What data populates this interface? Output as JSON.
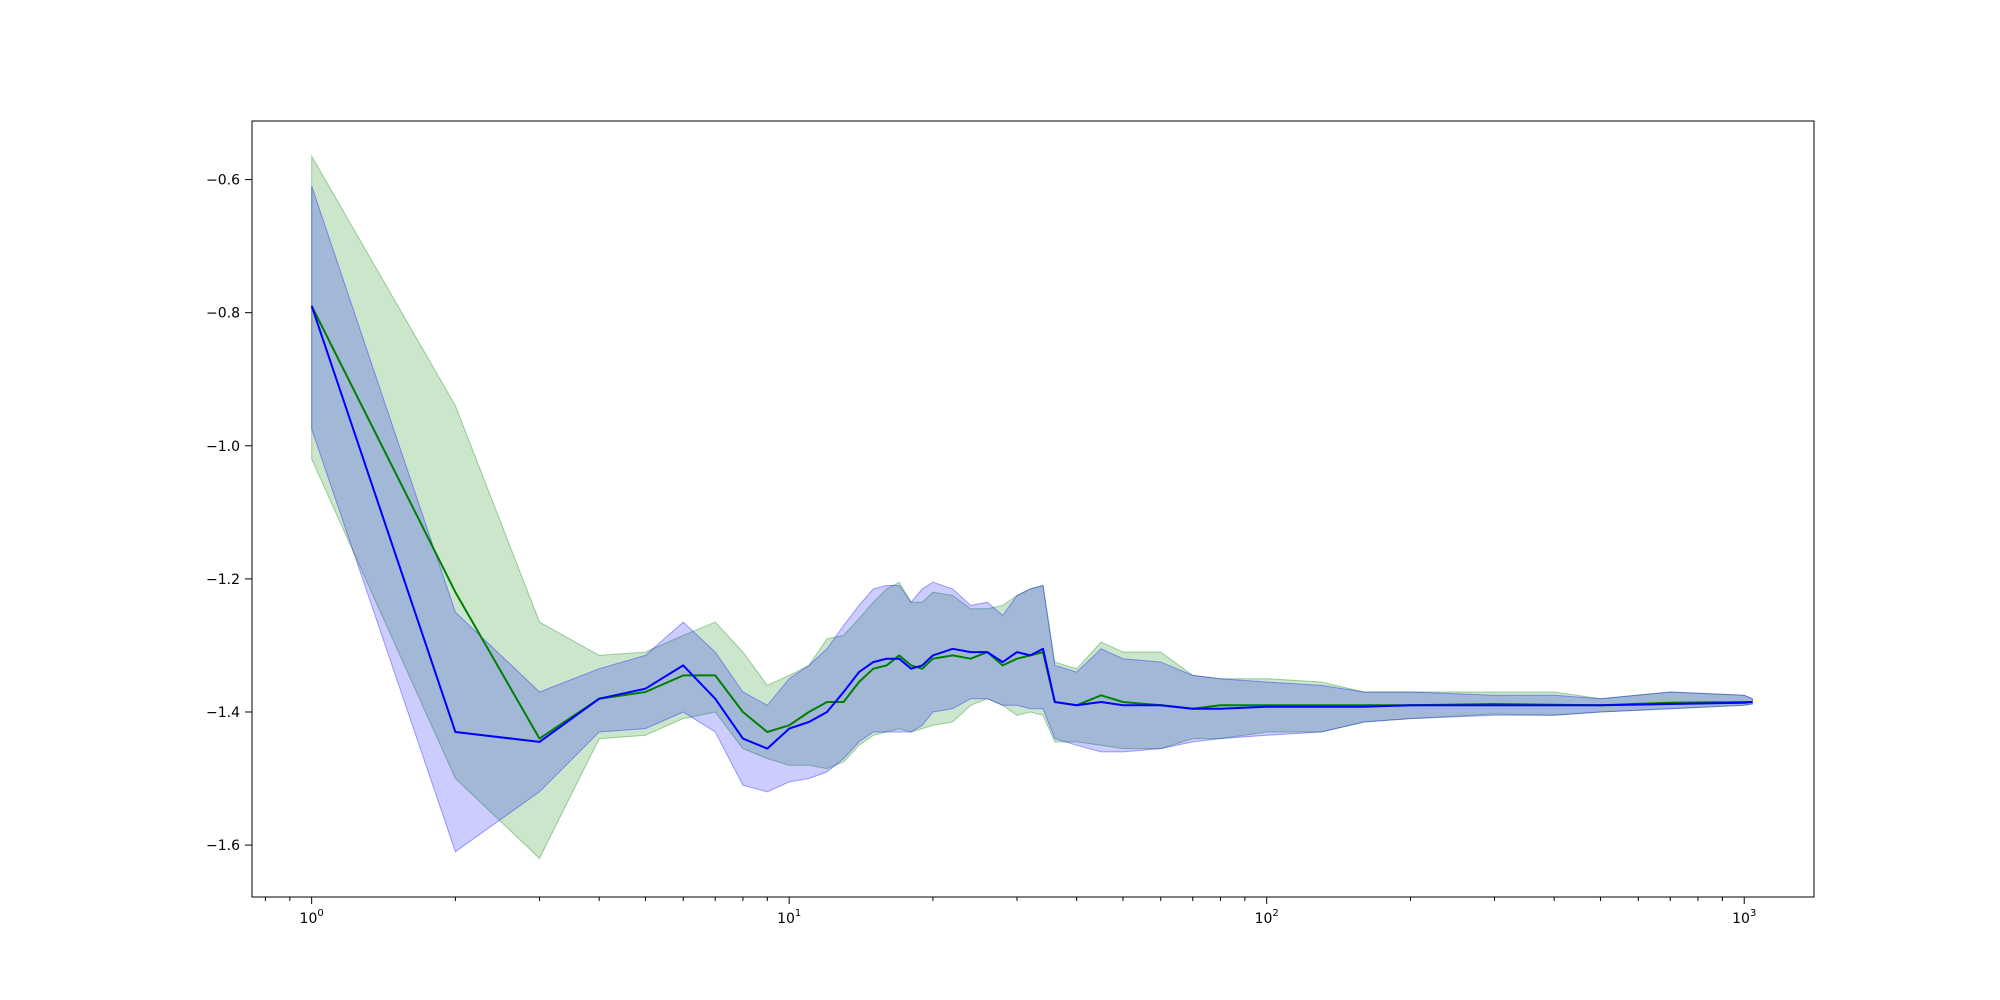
{
  "chart_data": {
    "type": "line",
    "xscale": "log",
    "xlim": [
      0.75,
      1400
    ],
    "ylim": [
      -1.678,
      -0.512
    ],
    "grid": false,
    "x_ticks": [
      {
        "value": 1,
        "base": "10",
        "exp": "0"
      },
      {
        "value": 10,
        "base": "10",
        "exp": "1"
      },
      {
        "value": 100,
        "base": "10",
        "exp": "2"
      },
      {
        "value": 1000,
        "base": "10",
        "exp": "3"
      }
    ],
    "y_ticks": [
      {
        "value": -1.6,
        "label": "−1.6"
      },
      {
        "value": -1.4,
        "label": "−1.4"
      },
      {
        "value": -1.2,
        "label": "−1.2"
      },
      {
        "value": -1.0,
        "label": "−1.0"
      },
      {
        "value": -0.8,
        "label": "−0.8"
      },
      {
        "value": -0.6,
        "label": "−0.6"
      }
    ],
    "series": [
      {
        "color": "#008000",
        "band_color": "#008000",
        "band_opacity": 0.2,
        "x": [
          1,
          2,
          3,
          4,
          5,
          6,
          7,
          8,
          9,
          10,
          11,
          12,
          13,
          14,
          15,
          16,
          17,
          18,
          19,
          20,
          22,
          24,
          26,
          28,
          30,
          32,
          34,
          36,
          40,
          45,
          50,
          60,
          70,
          80,
          100,
          130,
          160,
          200,
          300,
          400,
          500,
          700,
          1000,
          1040
        ],
        "mean": [
          -0.79,
          -1.22,
          -1.44,
          -1.38,
          -1.37,
          -1.345,
          -1.345,
          -1.4,
          -1.43,
          -1.42,
          -1.4,
          -1.385,
          -1.385,
          -1.355,
          -1.335,
          -1.33,
          -1.315,
          -1.33,
          -1.335,
          -1.32,
          -1.315,
          -1.32,
          -1.31,
          -1.33,
          -1.32,
          -1.315,
          -1.31,
          -1.385,
          -1.39,
          -1.375,
          -1.385,
          -1.39,
          -1.395,
          -1.39,
          -1.39,
          -1.39,
          -1.39,
          -1.39,
          -1.388,
          -1.389,
          -1.39,
          -1.386,
          -1.385,
          -1.385
        ],
        "lower": [
          -1.02,
          -1.5,
          -1.62,
          -1.44,
          -1.435,
          -1.41,
          -1.4,
          -1.455,
          -1.47,
          -1.48,
          -1.48,
          -1.485,
          -1.475,
          -1.45,
          -1.435,
          -1.43,
          -1.425,
          -1.43,
          -1.425,
          -1.42,
          -1.415,
          -1.39,
          -1.38,
          -1.39,
          -1.405,
          -1.4,
          -1.405,
          -1.445,
          -1.445,
          -1.45,
          -1.455,
          -1.455,
          -1.44,
          -1.44,
          -1.43,
          -1.43,
          -1.415,
          -1.41,
          -1.403,
          -1.405,
          -1.4,
          -1.395,
          -1.39,
          -1.388
        ],
        "upper": [
          -0.565,
          -0.94,
          -1.265,
          -1.315,
          -1.31,
          -1.285,
          -1.265,
          -1.31,
          -1.36,
          -1.345,
          -1.33,
          -1.29,
          -1.285,
          -1.26,
          -1.235,
          -1.215,
          -1.205,
          -1.235,
          -1.235,
          -1.22,
          -1.225,
          -1.245,
          -1.245,
          -1.24,
          -1.225,
          -1.215,
          -1.21,
          -1.325,
          -1.335,
          -1.295,
          -1.31,
          -1.31,
          -1.345,
          -1.35,
          -1.35,
          -1.355,
          -1.37,
          -1.37,
          -1.37,
          -1.37,
          -1.38,
          -1.37,
          -1.375,
          -1.38
        ]
      },
      {
        "color": "#0000ff",
        "band_color": "#0000ff",
        "band_opacity": 0.2,
        "x": [
          1,
          2,
          3,
          4,
          5,
          6,
          7,
          8,
          9,
          10,
          11,
          12,
          13,
          14,
          15,
          16,
          17,
          18,
          19,
          20,
          22,
          24,
          26,
          28,
          30,
          32,
          34,
          36,
          40,
          45,
          50,
          60,
          70,
          80,
          100,
          130,
          160,
          200,
          300,
          400,
          500,
          700,
          1000,
          1040
        ],
        "mean": [
          -0.79,
          -1.43,
          -1.445,
          -1.38,
          -1.365,
          -1.33,
          -1.38,
          -1.44,
          -1.455,
          -1.425,
          -1.415,
          -1.4,
          -1.37,
          -1.34,
          -1.325,
          -1.32,
          -1.32,
          -1.335,
          -1.33,
          -1.315,
          -1.305,
          -1.31,
          -1.31,
          -1.325,
          -1.31,
          -1.315,
          -1.305,
          -1.385,
          -1.39,
          -1.385,
          -1.39,
          -1.39,
          -1.395,
          -1.395,
          -1.392,
          -1.392,
          -1.392,
          -1.39,
          -1.39,
          -1.39,
          -1.39,
          -1.388,
          -1.386,
          -1.385
        ],
        "lower": [
          -0.975,
          -1.61,
          -1.52,
          -1.43,
          -1.425,
          -1.4,
          -1.43,
          -1.51,
          -1.52,
          -1.505,
          -1.5,
          -1.49,
          -1.47,
          -1.445,
          -1.43,
          -1.43,
          -1.43,
          -1.43,
          -1.42,
          -1.4,
          -1.395,
          -1.38,
          -1.38,
          -1.39,
          -1.39,
          -1.395,
          -1.395,
          -1.44,
          -1.45,
          -1.46,
          -1.46,
          -1.455,
          -1.445,
          -1.44,
          -1.435,
          -1.43,
          -1.415,
          -1.41,
          -1.405,
          -1.405,
          -1.4,
          -1.395,
          -1.39,
          -1.388
        ],
        "upper": [
          -0.61,
          -1.25,
          -1.37,
          -1.335,
          -1.315,
          -1.265,
          -1.31,
          -1.37,
          -1.39,
          -1.35,
          -1.33,
          -1.305,
          -1.27,
          -1.24,
          -1.215,
          -1.21,
          -1.21,
          -1.235,
          -1.215,
          -1.205,
          -1.215,
          -1.24,
          -1.235,
          -1.255,
          -1.225,
          -1.215,
          -1.21,
          -1.33,
          -1.34,
          -1.305,
          -1.32,
          -1.325,
          -1.345,
          -1.35,
          -1.355,
          -1.36,
          -1.37,
          -1.37,
          -1.375,
          -1.375,
          -1.38,
          -1.37,
          -1.375,
          -1.38
        ]
      }
    ]
  }
}
